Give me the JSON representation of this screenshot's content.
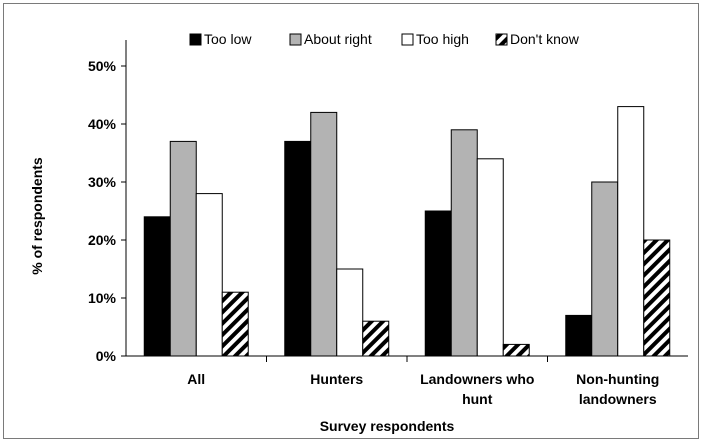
{
  "chart_data": {
    "type": "bar",
    "title": "",
    "xlabel": "Survey respondents",
    "ylabel": "% of respondents",
    "ylim": [
      0,
      50
    ],
    "yticks": [
      "0%",
      "10%",
      "20%",
      "30%",
      "40%",
      "50%"
    ],
    "yticks_values": [
      0,
      10,
      20,
      30,
      40,
      50
    ],
    "categories": [
      [
        "All"
      ],
      [
        "Hunters"
      ],
      [
        "Landowners who",
        "hunt"
      ],
      [
        "Non-hunting",
        "landowners"
      ]
    ],
    "legend_position": "top",
    "grid": false,
    "series": [
      {
        "name": "Too low",
        "values": [
          24,
          37,
          25,
          7
        ],
        "fill": "#000000",
        "pattern": "solid"
      },
      {
        "name": "About right",
        "values": [
          37,
          42,
          39,
          30
        ],
        "fill": "#b3b3b3",
        "pattern": "solid"
      },
      {
        "name": "Too high",
        "values": [
          28,
          15,
          34,
          43
        ],
        "fill": "#ffffff",
        "pattern": "solid"
      },
      {
        "name": "Don't know",
        "values": [
          11,
          6,
          2,
          20
        ],
        "fill": "#ffffff",
        "pattern": "hatch"
      }
    ]
  }
}
